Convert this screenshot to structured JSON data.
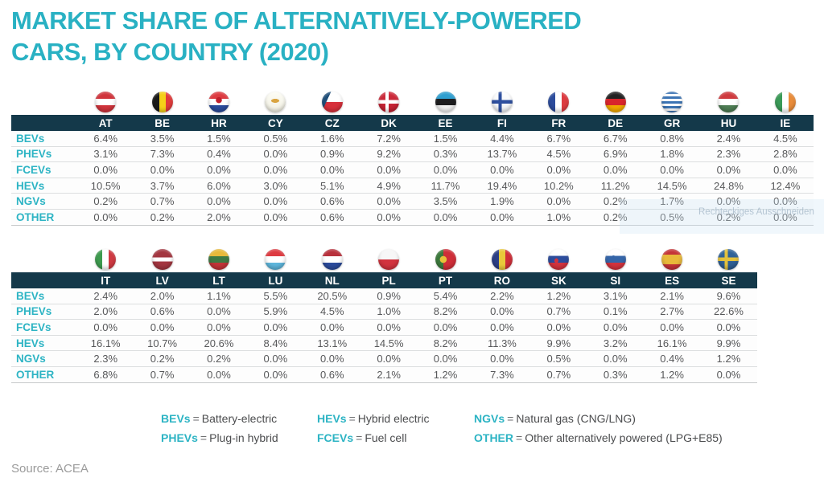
{
  "title": {
    "line1": "MARKET SHARE OF ALTERNATIVELY-POWERED",
    "line2": "CARS, BY COUNTRY (2020)"
  },
  "colors": {
    "accent_teal": "#29b1c3",
    "header_bar": "#14394a",
    "row_label_teal": "#2db4c4",
    "value_text": "#57585a"
  },
  "chart_data": {
    "type": "table",
    "title": "MARKET SHARE OF ALTERNATIVELY-POWERED CARS, BY COUNTRY (2020)",
    "unit": "%",
    "row_labels": [
      "BEVs",
      "PHEVs",
      "FCEVs",
      "HEVs",
      "NGVs",
      "OTHER"
    ],
    "tables": [
      {
        "countries": [
          "AT",
          "BE",
          "HR",
          "CY",
          "CZ",
          "DK",
          "EE",
          "FI",
          "FR",
          "DE",
          "GR",
          "HU",
          "IE"
        ],
        "rows": [
          [
            "6.4%",
            "3.5%",
            "1.5%",
            "0.5%",
            "1.6%",
            "7.2%",
            "1.5%",
            "4.4%",
            "6.7%",
            "6.7%",
            "0.8%",
            "2.4%",
            "4.5%"
          ],
          [
            "3.1%",
            "7.3%",
            "0.4%",
            "0.0%",
            "0.9%",
            "9.2%",
            "0.3%",
            "13.7%",
            "4.5%",
            "6.9%",
            "1.8%",
            "2.3%",
            "2.8%"
          ],
          [
            "0.0%",
            "0.0%",
            "0.0%",
            "0.0%",
            "0.0%",
            "0.0%",
            "0.0%",
            "0.0%",
            "0.0%",
            "0.0%",
            "0.0%",
            "0.0%",
            "0.0%"
          ],
          [
            "10.5%",
            "3.7%",
            "6.0%",
            "3.0%",
            "5.1%",
            "4.9%",
            "11.7%",
            "19.4%",
            "10.2%",
            "11.2%",
            "14.5%",
            "24.8%",
            "12.4%"
          ],
          [
            "0.2%",
            "0.7%",
            "0.0%",
            "0.0%",
            "0.6%",
            "0.0%",
            "3.5%",
            "1.9%",
            "0.0%",
            "0.2%",
            "1.7%",
            "0.0%",
            "0.0%"
          ],
          [
            "0.0%",
            "0.2%",
            "2.0%",
            "0.0%",
            "0.6%",
            "0.0%",
            "0.0%",
            "0.0%",
            "1.0%",
            "0.2%",
            "0.5%",
            "0.2%",
            "0.0%"
          ]
        ]
      },
      {
        "countries": [
          "IT",
          "LV",
          "LT",
          "LU",
          "NL",
          "PL",
          "PT",
          "RO",
          "SK",
          "SI",
          "ES",
          "SE"
        ],
        "rows": [
          [
            "2.4%",
            "2.0%",
            "1.1%",
            "5.5%",
            "20.5%",
            "0.9%",
            "5.4%",
            "2.2%",
            "1.2%",
            "3.1%",
            "2.1%",
            "9.6%"
          ],
          [
            "2.0%",
            "0.6%",
            "0.0%",
            "5.9%",
            "4.5%",
            "1.0%",
            "8.2%",
            "0.0%",
            "0.7%",
            "0.1%",
            "2.7%",
            "22.6%"
          ],
          [
            "0.0%",
            "0.0%",
            "0.0%",
            "0.0%",
            "0.0%",
            "0.0%",
            "0.0%",
            "0.0%",
            "0.0%",
            "0.0%",
            "0.0%",
            "0.0%"
          ],
          [
            "16.1%",
            "10.7%",
            "20.6%",
            "8.4%",
            "13.1%",
            "14.5%",
            "8.2%",
            "11.3%",
            "9.9%",
            "3.2%",
            "16.1%",
            "9.9%"
          ],
          [
            "2.3%",
            "0.2%",
            "0.2%",
            "0.0%",
            "0.0%",
            "0.0%",
            "0.0%",
            "0.0%",
            "0.5%",
            "0.0%",
            "0.4%",
            "1.2%"
          ],
          [
            "6.8%",
            "0.7%",
            "0.0%",
            "0.0%",
            "0.6%",
            "2.1%",
            "1.2%",
            "7.3%",
            "0.7%",
            "0.3%",
            "1.2%",
            "0.0%"
          ]
        ]
      }
    ],
    "source": "Source: ACEA",
    "legend_position": "bottom"
  },
  "flags": {
    "AT": {
      "name": "austria",
      "bg": "linear-gradient(to bottom, #d0343c 34%, #ffffff 34%, #ffffff 66%, #d0343c 66%)"
    },
    "BE": {
      "name": "belgium",
      "bg": "linear-gradient(to right, #1a1a1a 34%, #f5d018 34%, #f5d018 66%, #e23b3b 66%)"
    },
    "HR": {
      "name": "croatia",
      "bg": "radial-gradient(circle at 50% 41%, #c1202c 0, #c1202c 3.5px, rgba(0,0,0,0) 4px), linear-gradient(to bottom, #dd3b41 34%, #ffffff 34%, #ffffff 66%, #2a4b9b 66%)"
    },
    "CY": {
      "name": "cyprus",
      "bg": "radial-gradient(ellipse 8px 4px at 50% 44%, #d9a441 0, #d9a441 60%, rgba(0,0,0,0) 64%), linear-gradient(#fdfdf6, #f1efe2)"
    },
    "CZ": {
      "name": "czechia",
      "bg": "linear-gradient(115deg, #1f4e79 30%, rgba(0,0,0,0) 30.5%), linear-gradient(to bottom, #ffffff 50%, #d7303b 50%)"
    },
    "DK": {
      "name": "denmark",
      "bg": "linear-gradient(to bottom, rgba(0,0,0,0) 41%, #ffffff 41%, #ffffff 57%, rgba(0,0,0,0) 57%), linear-gradient(to right, rgba(0,0,0,0) 34%, #ffffff 34%, #ffffff 50%, rgba(0,0,0,0) 50%), linear-gradient(#cf2e3e, #c01f30)"
    },
    "EE": {
      "name": "estonia",
      "bg": "linear-gradient(to bottom, #2f9fd0 34%, #1d1d1f 34%, #1d1d1f 66%, #f2f2f2 66%)"
    },
    "FI": {
      "name": "finland",
      "bg": "linear-gradient(to bottom, rgba(0,0,0,0) 41%, #2d4f9e 41%, #2d4f9e 58%, rgba(0,0,0,0) 58%), linear-gradient(to right, rgba(0,0,0,0) 32%, #2d4f9e 32%, #2d4f9e 49%, rgba(0,0,0,0) 49%), linear-gradient(#ffffff, #eef1f4)"
    },
    "FR": {
      "name": "france",
      "bg": "linear-gradient(to right, #2c4c9c 34%, #ffffff 34%, #ffffff 66%, #dd3b41 66%)"
    },
    "DE": {
      "name": "germany",
      "bg": "linear-gradient(to bottom, #222222 34%, #d8252c 34%, #d8252c 66%, #f2a900 66%)"
    },
    "GR": {
      "name": "greece",
      "bg": "repeating-linear-gradient(to bottom, #3c74b4 0, #3c74b4 3px, #ffffff 3px, #ffffff 6px)"
    },
    "HU": {
      "name": "hungary",
      "bg": "linear-gradient(to bottom, #cf3a3e 34%, #ffffff 34%, #ffffff 66%, #4e7d54 66%)"
    },
    "IE": {
      "name": "ireland",
      "bg": "linear-gradient(to right, #3a9a57 34%, #ffffff 34%, #ffffff 66%, #e98c3a 66%)"
    },
    "IT": {
      "name": "italy",
      "bg": "linear-gradient(to right, #3e9b4f 34%, #ffffff 34%, #ffffff 66%, #cf3a42 66%)"
    },
    "LV": {
      "name": "latvia",
      "bg": "linear-gradient(to bottom, #a33640 40%, #ffffff 40%, #ffffff 60%, #a33640 60%)"
    },
    "LT": {
      "name": "lithuania",
      "bg": "linear-gradient(to bottom, #e8b93a 34%, #3f7a44 34%, #3f7a44 66%, #c23438 66%)"
    },
    "LU": {
      "name": "luxembourg",
      "bg": "linear-gradient(to bottom, #dd3b41 34%, #ffffff 34%, #ffffff 66%, #5fb6dc 66%)"
    },
    "NL": {
      "name": "netherlands",
      "bg": "linear-gradient(to bottom, #b8313c 34%, #ffffff 34%, #ffffff 66%, #2c4c9c 66%)"
    },
    "PL": {
      "name": "poland",
      "bg": "linear-gradient(to bottom, #f7f7f7 50%, #d2333e 50%)"
    },
    "PT": {
      "name": "portugal",
      "bg": "radial-gradient(circle at 38% 50%, #e8c23a 0, #e8c23a 4px, rgba(0,0,0,0) 4.5px), linear-gradient(to right, #3c7a3c 38%, #cf2e38 38%)"
    },
    "RO": {
      "name": "romania",
      "bg": "linear-gradient(to right, #2c3f86 34%, #e8c93a 34%, #e8c93a 66%, #cf2e38 66%)"
    },
    "SK": {
      "name": "slovakia",
      "bg": "radial-gradient(ellipse 4px 5px at 40% 56%, #d2333e 0, #d2333e 58%, rgba(0,0,0,0) 63%), linear-gradient(to bottom, #ffffff 33%, #2c4c9c 33%, #2c4c9c 66%, #d2333e 66%)"
    },
    "SI": {
      "name": "slovenia",
      "bg": "radial-gradient(ellipse 4px 5px at 40% 42%, #3565a8 0, #3565a8 58%, rgba(0,0,0,0) 63%), linear-gradient(to bottom, #ffffff 33%, #3565a8 33%, #3565a8 66%, #d2333e 66%)"
    },
    "ES": {
      "name": "spain",
      "bg": "linear-gradient(to bottom, #c43438 26%, #e8b93a 26%, #e8b93a 74%, #c43438 74%)"
    },
    "SE": {
      "name": "sweden",
      "bg": "linear-gradient(to bottom, rgba(0,0,0,0) 41%, #e3c13d 41%, #e3c13d 58%, rgba(0,0,0,0) 58%), linear-gradient(to right, rgba(0,0,0,0) 32%, #e3c13d 32%, #e3c13d 49%, rgba(0,0,0,0) 49%), linear-gradient(#33669c, #2c5a8e)"
    }
  },
  "legend": {
    "separator": "=",
    "columns": [
      [
        {
          "abbr": "BEVs",
          "def": "Battery-electric"
        },
        {
          "abbr": "PHEVs",
          "def": "Plug-in hybrid"
        }
      ],
      [
        {
          "abbr": "HEVs",
          "def": "Hybrid electric"
        },
        {
          "abbr": "FCEVs",
          "def": "Fuel cell"
        }
      ],
      [
        {
          "abbr": "NGVs",
          "def": "Natural gas (CNG/LNG)"
        },
        {
          "abbr": "OTHER",
          "def": "Other alternatively powered (LPG+E85)"
        }
      ]
    ]
  },
  "source": "Source: ACEA",
  "watermark": "Rechteckiges Ausschneiden"
}
